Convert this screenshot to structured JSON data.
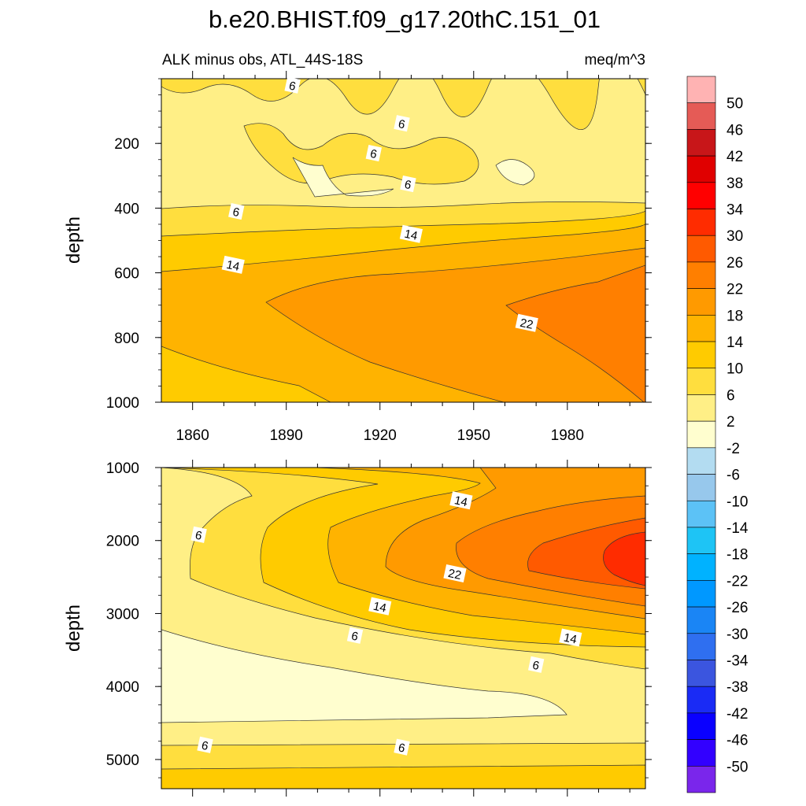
{
  "title": "b.e20.BHIST.f09_g17.20thC.151_01",
  "chart_data": {
    "type": "contour",
    "title": "b.e20.BHIST.f09_g17.20thC.151_01",
    "subtitle_left": "ALK minus obs, ATL_44S-18S",
    "subtitle_right": "meq/m^3",
    "x_ticks": [
      1860,
      1890,
      1920,
      1950,
      1980
    ],
    "xlim": [
      1850,
      2005
    ],
    "panels": [
      {
        "ylabel": "depth",
        "ylim": [
          0,
          1000
        ],
        "y_ticks": [
          200,
          400,
          600,
          800,
          1000
        ],
        "contour_labels": [
          {
            "text": "6",
            "x": 1892,
            "y": 20
          },
          {
            "text": "6",
            "x": 1927,
            "y": 138
          },
          {
            "text": "6",
            "x": 1918,
            "y": 230
          },
          {
            "text": "6",
            "x": 1929,
            "y": 325
          },
          {
            "text": "6",
            "x": 1874,
            "y": 410
          },
          {
            "text": "14",
            "x": 1930,
            "y": 480
          },
          {
            "text": "14",
            "x": 1873,
            "y": 575
          },
          {
            "text": "22",
            "x": 1967,
            "y": 755
          }
        ]
      },
      {
        "ylabel": "depth",
        "ylim": [
          1000,
          5400
        ],
        "y_ticks": [
          1000,
          2000,
          3000,
          4000,
          5000
        ],
        "contour_labels": [
          {
            "text": "6",
            "x": 1862,
            "y": 1920
          },
          {
            "text": "14",
            "x": 1946,
            "y": 1450
          },
          {
            "text": "22",
            "x": 1944,
            "y": 2450
          },
          {
            "text": "14",
            "x": 1920,
            "y": 2900
          },
          {
            "text": "14",
            "x": 1981,
            "y": 3330
          },
          {
            "text": "6",
            "x": 1912,
            "y": 3300
          },
          {
            "text": "6",
            "x": 1970,
            "y": 3700
          },
          {
            "text": "6",
            "x": 1864,
            "y": 4800
          },
          {
            "text": "6",
            "x": 1927,
            "y": 4830
          }
        ]
      }
    ],
    "colorbar": {
      "labels": [
        "50",
        "46",
        "42",
        "38",
        "34",
        "30",
        "26",
        "22",
        "18",
        "14",
        "10",
        "6",
        "2",
        "-2",
        "-6",
        "-10",
        "-14",
        "-18",
        "-22",
        "-26",
        "-30",
        "-34",
        "-38",
        "-42",
        "-46",
        "-50"
      ],
      "colors": [
        "#ffb3b3",
        "#e55b56",
        "#c81619",
        "#e00000",
        "#ff0000",
        "#ff2c00",
        "#ff5a00",
        "#ff7f00",
        "#ff9a00",
        "#ffb300",
        "#ffcb00",
        "#ffde3e",
        "#ffef86",
        "#fffecf",
        "#b3dcf1",
        "#97c8ec",
        "#5cc2f6",
        "#1ec4f5",
        "#00b2ff",
        "#0098ff",
        "#1a85f5",
        "#2f6ff0",
        "#3b55df",
        "#1a2bf5",
        "#0a00ff",
        "#3200ff",
        "#7a26eb"
      ]
    },
    "colors_used": {
      "fill_lightest": "#fffecf",
      "fill_2_6": "#ffef86",
      "fill_6_10": "#ffde3e",
      "fill_10_14": "#ffcb00",
      "fill_14_18": "#ffb300",
      "fill_18_22": "#ff9a00",
      "fill_22_26": "#ff7f00",
      "fill_26_30": "#ff5a00",
      "fill_30_34": "#ff2c00"
    }
  }
}
